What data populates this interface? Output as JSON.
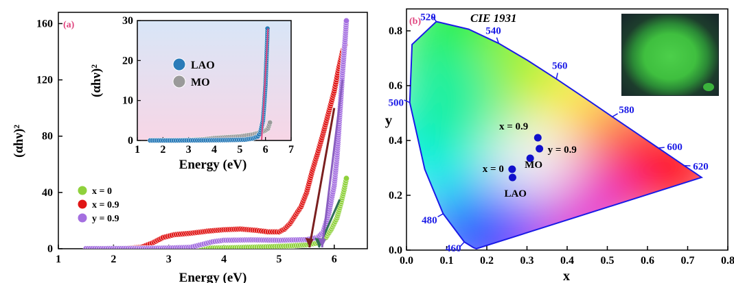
{
  "figures": [
    {
      "panel_label": "(a)",
      "panel_color": "#e0457f",
      "chart_data": {
        "type": "scatter",
        "xlabel": "Energy (eV)",
        "ylabel": "(αhν)²",
        "xlim": [
          1,
          6.6
        ],
        "ylim": [
          0,
          168
        ],
        "xticks": [
          1,
          2,
          3,
          4,
          5,
          6
        ],
        "yticks": [
          0,
          40,
          80,
          120,
          160
        ],
        "legend_position": "bottom-left",
        "series": [
          {
            "name": "x = 0",
            "color": "#8fd13c",
            "points": [
              [
                1.6,
                0
              ],
              [
                2.5,
                0.1
              ],
              [
                3.2,
                0.2
              ],
              [
                3.8,
                0.5
              ],
              [
                4.2,
                0.8
              ],
              [
                4.8,
                1.4
              ],
              [
                5.2,
                2
              ],
              [
                5.5,
                2.8
              ],
              [
                5.7,
                4
              ],
              [
                5.85,
                8
              ],
              [
                5.95,
                14
              ],
              [
                6.05,
                22
              ],
              [
                6.12,
                32
              ],
              [
                6.18,
                42
              ],
              [
                6.22,
                50
              ]
            ]
          },
          {
            "name": "x = 0.9",
            "color": "#e01616",
            "points": [
              [
                2.2,
                0.2
              ],
              [
                2.5,
                1
              ],
              [
                2.7,
                4
              ],
              [
                2.9,
                8
              ],
              [
                3.1,
                10
              ],
              [
                3.4,
                11
              ],
              [
                3.7,
                12.5
              ],
              [
                4.0,
                13.5
              ],
              [
                4.3,
                14
              ],
              [
                4.6,
                13
              ],
              [
                4.8,
                12
              ],
              [
                5.0,
                12
              ],
              [
                5.1,
                14
              ],
              [
                5.2,
                18
              ],
              [
                5.3,
                24
              ],
              [
                5.4,
                30
              ],
              [
                5.5,
                40
              ],
              [
                5.6,
                55
              ],
              [
                5.7,
                68
              ],
              [
                5.8,
                82
              ],
              [
                5.9,
                97
              ],
              [
                6.0,
                112
              ],
              [
                6.08,
                128
              ],
              [
                6.15,
                140
              ],
              [
                6.2,
                145
              ]
            ]
          },
          {
            "name": "y = 0.9",
            "color": "#a46fe0",
            "points": [
              [
                1.5,
                0.1
              ],
              [
                2.5,
                0.2
              ],
              [
                3.0,
                0.5
              ],
              [
                3.4,
                1
              ],
              [
                3.6,
                3
              ],
              [
                3.8,
                5
              ],
              [
                4.0,
                6
              ],
              [
                4.5,
                6.3
              ],
              [
                5.0,
                6
              ],
              [
                5.5,
                6.5
              ],
              [
                5.7,
                8
              ],
              [
                5.8,
                12
              ],
              [
                5.9,
                25
              ],
              [
                6.0,
                45
              ],
              [
                6.05,
                65
              ],
              [
                6.1,
                95
              ],
              [
                6.15,
                125
              ],
              [
                6.2,
                150
              ],
              [
                6.22,
                162
              ]
            ]
          }
        ],
        "tangent_lines": [
          {
            "color": "#7a1f1f",
            "x0": 5.55,
            "x1": 6.0,
            "y1": 100
          },
          {
            "color": "#2f6f55",
            "x0": 5.72,
            "x1": 6.1,
            "y1": 35
          },
          {
            "color": "#8a5fc0",
            "x0": 5.78,
            "x1": 6.15,
            "y1": 120
          }
        ]
      },
      "inset": {
        "chart_data": {
          "type": "scatter",
          "xlabel": "Energy (eV)",
          "ylabel": "(αhν)²",
          "xlim": [
            1,
            7
          ],
          "ylim": [
            0,
            30
          ],
          "xticks": [
            1,
            2,
            3,
            4,
            5,
            6,
            7
          ],
          "yticks": [
            0,
            10,
            20,
            30
          ],
          "legend_position": "left",
          "series": [
            {
              "name": "LAO",
              "color": "#2a7bb8",
              "points": [
                [
                  1.5,
                  0
                ],
                [
                  2.5,
                  0
                ],
                [
                  3.5,
                  0.05
                ],
                [
                  4.5,
                  0.1
                ],
                [
                  5.2,
                  0.2
                ],
                [
                  5.5,
                  0.5
                ],
                [
                  5.7,
                  1
                ],
                [
                  5.8,
                  2
                ],
                [
                  5.9,
                  5
                ],
                [
                  5.95,
                  9
                ],
                [
                  6.0,
                  14
                ],
                [
                  6.03,
                  19
                ],
                [
                  6.06,
                  24
                ],
                [
                  6.08,
                  28.5
                ]
              ]
            },
            {
              "name": "MO",
              "color": "#9a9a9a",
              "points": [
                [
                  1.5,
                  0
                ],
                [
                  2.5,
                  0
                ],
                [
                  3.0,
                  0.1
                ],
                [
                  3.6,
                  0.3
                ],
                [
                  4.0,
                  0.6
                ],
                [
                  4.5,
                  0.8
                ],
                [
                  5.0,
                  1
                ],
                [
                  5.5,
                  1.5
                ],
                [
                  5.8,
                  2
                ],
                [
                  6.0,
                  2.5
                ],
                [
                  6.1,
                  3
                ],
                [
                  6.15,
                  4
                ],
                [
                  6.2,
                  5
                ]
              ]
            }
          ],
          "tangent_lines": [
            {
              "color": "#e0457f",
              "x0": 5.85,
              "x1": 6.1,
              "y1": 28
            }
          ]
        }
      }
    },
    {
      "panel_label": "(b)",
      "panel_color": "#e0457f",
      "title": "CIE 1931",
      "chart_data": {
        "type": "scatter",
        "xlabel": "x",
        "ylabel": "y",
        "xlim": [
          0,
          0.8
        ],
        "ylim": [
          0,
          0.88
        ],
        "xticks": [
          "0.0",
          "0.1",
          "0.2",
          "0.3",
          "0.4",
          "0.5",
          "0.6",
          "0.7",
          "0.8"
        ],
        "yticks": [
          "0.0",
          "0.2",
          "0.4",
          "0.6",
          "0.8"
        ],
        "locus": [
          [
            0.1741,
            0.005
          ],
          [
            0.1738,
            0.0049
          ],
          [
            0.1666,
            0.0089
          ],
          [
            0.144,
            0.0297
          ],
          [
            0.0913,
            0.1327
          ],
          [
            0.0454,
            0.295
          ],
          [
            0.0082,
            0.5384
          ],
          [
            0.0139,
            0.7502
          ],
          [
            0.0743,
            0.8338
          ],
          [
            0.1547,
            0.8059
          ],
          [
            0.2296,
            0.7543
          ],
          [
            0.3016,
            0.6923
          ],
          [
            0.3731,
            0.6245
          ],
          [
            0.4441,
            0.5547
          ],
          [
            0.5125,
            0.4866
          ],
          [
            0.5752,
            0.4242
          ],
          [
            0.627,
            0.3725
          ],
          [
            0.6658,
            0.334
          ],
          [
            0.6915,
            0.3083
          ],
          [
            0.7079,
            0.292
          ],
          [
            0.719,
            0.2809
          ],
          [
            0.726,
            0.274
          ],
          [
            0.7347,
            0.2653
          ]
        ],
        "wavelength_labels": [
          {
            "text": "520",
            "x": 0.0743,
            "y": 0.8338
          },
          {
            "text": "540",
            "x": 0.2296,
            "y": 0.7543
          },
          {
            "text": "560",
            "x": 0.3731,
            "y": 0.6245
          },
          {
            "text": "580",
            "x": 0.5125,
            "y": 0.4866
          },
          {
            "text": "600",
            "x": 0.627,
            "y": 0.3725
          },
          {
            "text": "620",
            "x": 0.6915,
            "y": 0.3083
          },
          {
            "text": "500",
            "x": 0.0082,
            "y": 0.5384
          },
          {
            "text": "480",
            "x": 0.0913,
            "y": 0.1327
          },
          {
            "text": "460",
            "x": 0.144,
            "y": 0.0297
          }
        ],
        "points": [
          {
            "label": "x = 0",
            "x": 0.263,
            "y": 0.295,
            "color": "#1111cc"
          },
          {
            "label": "LAO",
            "x": 0.264,
            "y": 0.265,
            "color": "#1111cc"
          },
          {
            "label": "MO",
            "x": 0.308,
            "y": 0.335,
            "color": "#1111cc"
          },
          {
            "label": "x = 0.9",
            "x": 0.327,
            "y": 0.41,
            "color": "#1111cc"
          },
          {
            "label": "y = 0.9",
            "x": 0.331,
            "y": 0.37,
            "color": "#1111cc"
          }
        ]
      }
    }
  ]
}
